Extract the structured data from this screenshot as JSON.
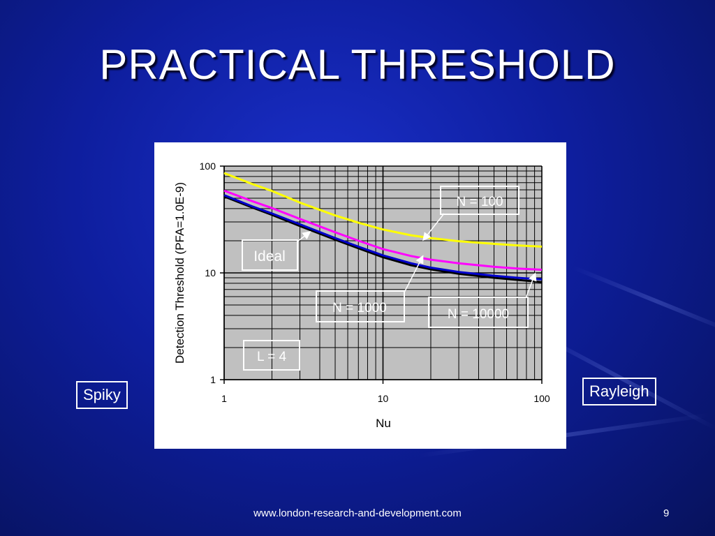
{
  "slide": {
    "title": "PRACTICAL THRESHOLD",
    "left_label": "Spiky",
    "right_label": "Rayleigh",
    "footer_url": "www.london-research-and-development.com",
    "page_number": "9"
  },
  "colors": {
    "background": "#0e1e9e",
    "plot_area": "#c0c0c0",
    "ideal": "#000000",
    "n100": "#ffff00",
    "n1000": "#ff00ff",
    "n10000": "#0000cc"
  },
  "chart_data": {
    "type": "line",
    "title": "",
    "xlabel": "Nu",
    "ylabel": "Detection Threshold (PFA=1.0E-9)",
    "xscale": "log",
    "yscale": "log",
    "xlim": [
      1,
      100
    ],
    "ylim": [
      1,
      100
    ],
    "grid": true,
    "x_ticks": [
      "1",
      "10",
      "100"
    ],
    "y_ticks": [
      "1",
      "10",
      "100"
    ],
    "x": [
      1,
      1.5,
      2,
      3,
      5,
      7,
      10,
      15,
      20,
      30,
      50,
      70,
      100
    ],
    "series": [
      {
        "name": "Ideal",
        "color": "#000000",
        "values": [
          52,
          41,
          35,
          27.5,
          20.5,
          17,
          14,
          11.8,
          10.8,
          9.8,
          9.0,
          8.6,
          8.2
        ]
      },
      {
        "name": "N = 10000",
        "color": "#0000cc",
        "values": [
          53.5,
          42,
          36,
          28.5,
          21.2,
          17.6,
          14.6,
          12.3,
          11.2,
          10.2,
          9.4,
          9.0,
          8.7
        ]
      },
      {
        "name": "N = 1000",
        "color": "#ff00ff",
        "values": [
          59,
          47,
          40.5,
          32,
          24,
          20,
          16.7,
          14.4,
          13.3,
          12.3,
          11.4,
          11.0,
          10.7
        ]
      },
      {
        "name": "N = 100",
        "color": "#ffff00",
        "values": [
          86,
          68,
          58.5,
          45.5,
          34.5,
          29.5,
          25.5,
          22.5,
          21.2,
          19.8,
          18.7,
          18.1,
          17.6
        ]
      }
    ],
    "annotations": [
      "Ideal",
      "N = 100",
      "N = 1000",
      "N = 10000",
      "L = 4"
    ]
  }
}
